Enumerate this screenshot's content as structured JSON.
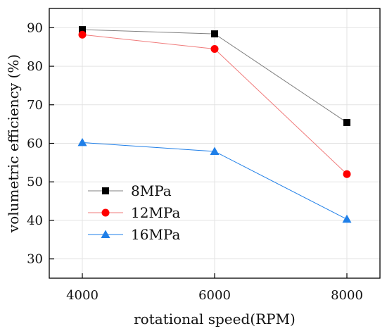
{
  "chart_data": {
    "type": "line",
    "title": "",
    "xlabel": "rotational speed(RPM)",
    "ylabel": "volumetric efficiency (%)",
    "x": [
      4000,
      6000,
      8000
    ],
    "x_tick_labels": [
      "4000",
      "6000",
      "8000"
    ],
    "xlim": [
      3500,
      8500
    ],
    "ylim": [
      25,
      95
    ],
    "y_ticks": [
      30,
      40,
      50,
      60,
      70,
      80,
      90
    ],
    "grid": true,
    "legend_position": "lower-left",
    "series": [
      {
        "name": "8MPa",
        "values": [
          89.5,
          88.4,
          65.4
        ],
        "color": "#000000",
        "line_color": "#808080",
        "marker": "square"
      },
      {
        "name": "12MPa",
        "values": [
          88.2,
          84.5,
          52.0
        ],
        "color": "#ff0000",
        "line_color": "#f07b7b",
        "marker": "circle"
      },
      {
        "name": "16MPa",
        "values": [
          60.2,
          57.9,
          40.3
        ],
        "color": "#1f7fe8",
        "line_color": "#1f7fe8",
        "marker": "triangle"
      }
    ]
  }
}
